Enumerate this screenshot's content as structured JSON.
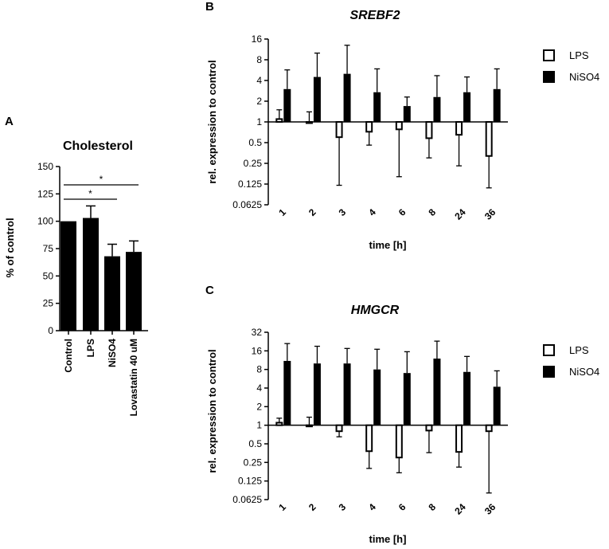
{
  "panels": {
    "a_letter": "A",
    "b_letter": "B",
    "c_letter": "C"
  },
  "chart_data": [
    {
      "id": "A",
      "type": "bar",
      "title": "Cholesterol",
      "ylabel": "% of control",
      "xlabel": "",
      "ylim": [
        0,
        150
      ],
      "yticks": [
        "0",
        "25",
        "50",
        "75",
        "100",
        "125",
        "150"
      ],
      "categories": [
        "Control",
        "LPS",
        "NiSO4",
        "Lovastatin 40 uM"
      ],
      "values": [
        100,
        103,
        68,
        72
      ],
      "errors": [
        0,
        11,
        11,
        10
      ],
      "significance": [
        {
          "from": 0,
          "to": 2,
          "label": "*"
        },
        {
          "from": 0,
          "to": 3,
          "label": "*"
        }
      ]
    },
    {
      "id": "B",
      "type": "bar",
      "title": "SREBF2",
      "ylabel": "rel. expression to control",
      "xlabel": "time [h]",
      "yscale": "log2",
      "ylim": [
        0.0625,
        16
      ],
      "yticks": [
        "0.0625",
        "0.125",
        "0.25",
        "0.5",
        "1",
        "2",
        "4",
        "8",
        "16"
      ],
      "categories": [
        "1",
        "2",
        "3",
        "4",
        "6",
        "8",
        "24",
        "36"
      ],
      "legend_position": "top-right",
      "series": [
        {
          "name": "LPS",
          "fill": "none",
          "values": [
            1.1,
            1.0,
            0.6,
            0.72,
            0.78,
            0.58,
            0.65,
            0.32
          ],
          "err_end": [
            1.5,
            1.4,
            0.12,
            0.46,
            0.16,
            0.3,
            0.23,
            0.11
          ]
        },
        {
          "name": "NiSO4",
          "fill": "solid",
          "values": [
            3.0,
            4.5,
            5.0,
            2.7,
            1.7,
            2.3,
            2.7,
            3.0
          ],
          "err_end": [
            5.7,
            10.0,
            13.0,
            5.9,
            2.3,
            4.7,
            4.5,
            5.9
          ]
        }
      ]
    },
    {
      "id": "C",
      "type": "bar",
      "title": "HMGCR",
      "ylabel": "rel. expression to control",
      "xlabel": "time [h]",
      "yscale": "log2",
      "ylim": [
        0.0625,
        32
      ],
      "yticks": [
        "0.0625",
        "0.125",
        "0.25",
        "0.5",
        "1",
        "2",
        "4",
        "8",
        "16",
        "32"
      ],
      "categories": [
        "1",
        "2",
        "3",
        "4",
        "6",
        "8",
        "24",
        "36"
      ],
      "legend_position": "top-right",
      "series": [
        {
          "name": "LPS",
          "fill": "none",
          "values": [
            1.1,
            1.0,
            0.8,
            0.38,
            0.3,
            0.82,
            0.37,
            0.8
          ],
          "err_end": [
            1.3,
            1.35,
            0.65,
            0.2,
            0.17,
            0.36,
            0.21,
            0.08
          ]
        },
        {
          "name": "NiSO4",
          "fill": "solid",
          "values": [
            11,
            10,
            10,
            8,
            7,
            12,
            7.3,
            4.2
          ],
          "err_end": [
            21,
            19,
            17.5,
            17,
            15.5,
            23,
            13,
            7.6
          ]
        }
      ]
    }
  ]
}
